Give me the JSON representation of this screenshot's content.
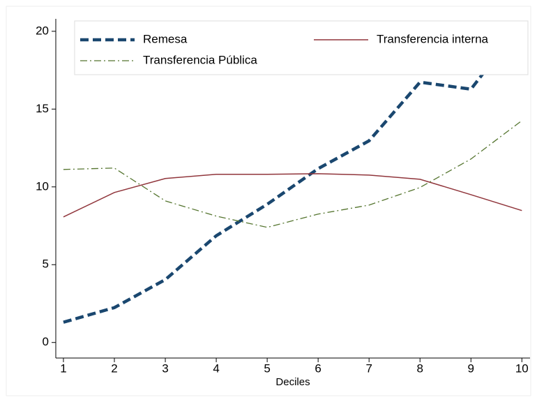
{
  "chart_data": {
    "type": "line",
    "x": [
      1,
      2,
      3,
      4,
      5,
      6,
      7,
      8,
      9,
      10
    ],
    "xlabel": "Deciles",
    "series": [
      {
        "name": "Remesa",
        "color": "#1a476f",
        "style": "dash",
        "values": [
          1.3,
          2.24,
          4.04,
          6.86,
          8.88,
          11.17,
          12.96,
          16.73,
          16.28,
          20.5
        ]
      },
      {
        "name": "Transferencia interna",
        "color": "#90353b",
        "style": "solid",
        "values": [
          8.07,
          9.64,
          10.54,
          10.81,
          10.81,
          10.85,
          10.76,
          10.49,
          9.5,
          8.48
        ]
      },
      {
        "name": "Transferencia Pública",
        "color": "#55752f",
        "style": "dashdot",
        "values": [
          11.12,
          11.21,
          9.1,
          8.12,
          7.4,
          8.25,
          8.83,
          9.96,
          11.79,
          14.26
        ]
      }
    ],
    "xlim": [
      0.85,
      10.16
    ],
    "xticks": [
      1,
      2,
      3,
      4,
      5,
      6,
      7,
      8,
      9,
      10
    ],
    "ylim": [
      -1,
      20.8
    ],
    "yticks": [
      0,
      5,
      10,
      15,
      20
    ],
    "grid": false
  }
}
